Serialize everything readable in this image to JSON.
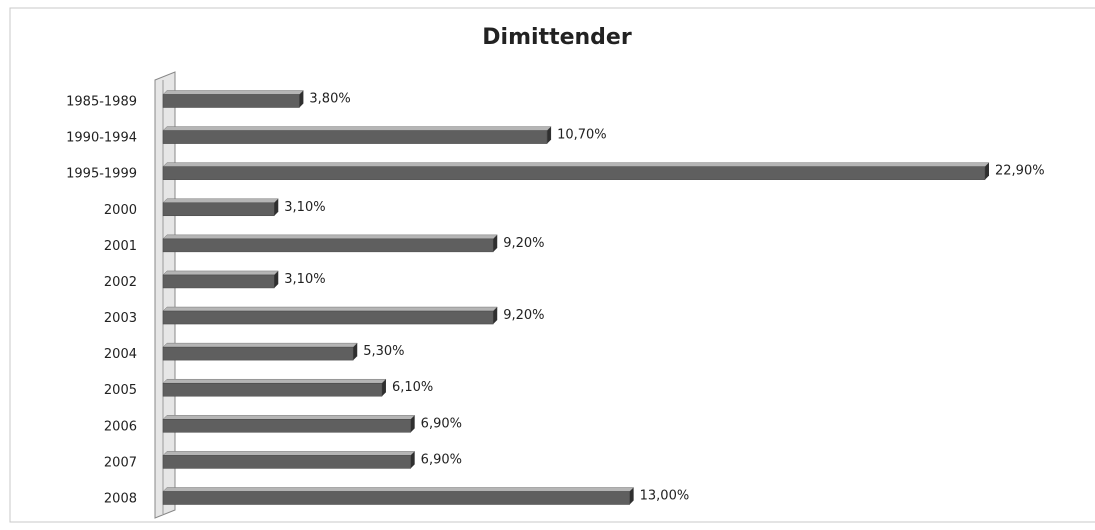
{
  "chart_data": {
    "type": "bar",
    "orientation": "horizontal",
    "title": "Dimittender",
    "categories": [
      "1985-1989",
      "1990-1994",
      "1995-1999",
      "2000",
      "2001",
      "2002",
      "2003",
      "2004",
      "2005",
      "2006",
      "2007",
      "2008"
    ],
    "values": [
      3.8,
      10.7,
      22.9,
      3.1,
      9.2,
      3.1,
      9.2,
      5.3,
      6.1,
      6.9,
      6.9,
      13.0
    ],
    "value_labels": [
      "3,80%",
      "10,70%",
      "22,90%",
      "3,10%",
      "9,20%",
      "3,10%",
      "9,20%",
      "5,30%",
      "6,10%",
      "6,90%",
      "6,90%",
      "13,00%"
    ],
    "color": "#5f5f5f"
  }
}
